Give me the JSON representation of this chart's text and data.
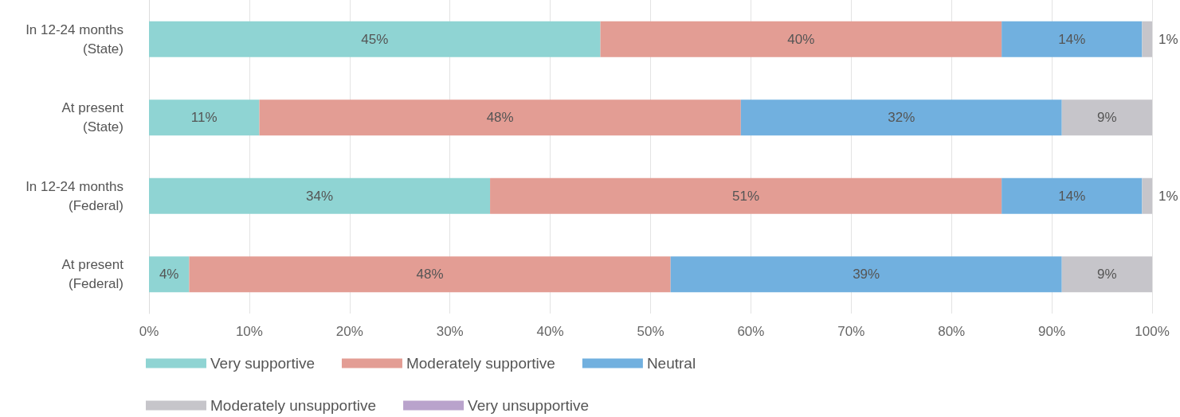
{
  "chart_data": {
    "type": "bar",
    "orientation": "horizontal",
    "stacked": true,
    "categories": [
      "In 12-24 months\n(State)",
      "At present\n(State)",
      "In 12-24 months\n(Federal)",
      "At present\n(Federal)"
    ],
    "series": [
      {
        "name": "Very supportive",
        "color": "#8fd4d3",
        "values": [
          45,
          11,
          34,
          4
        ],
        "value_labels": [
          "45%",
          "11%",
          "34%",
          "4%"
        ]
      },
      {
        "name": "Moderately supportive",
        "color": "#e39d94",
        "values": [
          40,
          48,
          51,
          48
        ],
        "value_labels": [
          "40%",
          "48%",
          "51%",
          "48%"
        ]
      },
      {
        "name": "Neutral",
        "color": "#71b0df",
        "values": [
          14,
          32,
          14,
          39
        ],
        "value_labels": [
          "14%",
          "32%",
          "14%",
          "39%"
        ]
      },
      {
        "name": "Moderately unsupportive",
        "color": "#c6c5ca",
        "values": [
          1,
          9,
          1,
          9
        ],
        "value_labels": [
          "1%",
          "9%",
          "1%",
          "9%"
        ]
      },
      {
        "name": "Very unsupportive",
        "color": "#b9a3cc",
        "values": [
          0,
          0,
          0,
          0
        ],
        "value_labels": [
          null,
          null,
          null,
          null
        ]
      }
    ],
    "xlim": [
      0,
      100
    ],
    "xticks": [
      {
        "value": 0,
        "label": "0%"
      },
      {
        "value": 10,
        "label": "10%"
      },
      {
        "value": 20,
        "label": "20%"
      },
      {
        "value": 30,
        "label": "30%"
      },
      {
        "value": 40,
        "label": "40%"
      },
      {
        "value": 50,
        "label": "50%"
      },
      {
        "value": 60,
        "label": "60%"
      },
      {
        "value": 70,
        "label": "70%"
      },
      {
        "value": 80,
        "label": "80%"
      },
      {
        "value": 90,
        "label": "90%"
      },
      {
        "value": 100,
        "label": "100%"
      }
    ],
    "grid": "x",
    "legend": "bottom"
  }
}
